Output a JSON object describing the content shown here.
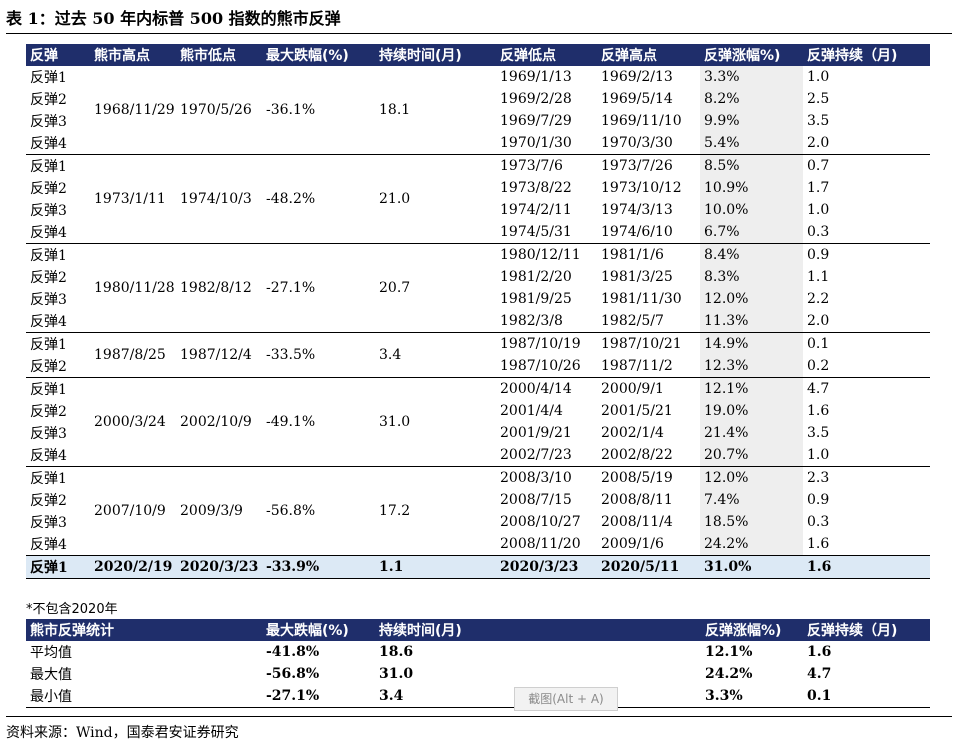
{
  "title": "表 1：过去 50 年内标普 500 指数的熊市反弹",
  "columns": [
    "反弹",
    "熊市高点",
    "熊市低点",
    "最大跌幅(%)",
    "持续时间(月)",
    "反弹低点",
    "反弹高点",
    "反弹涨幅%)",
    "反弹持续（月)"
  ],
  "groups": [
    {
      "high": "1968/11/29",
      "low": "1970/5/26",
      "drop": "-36.1%",
      "dur": "18.1",
      "rebounds": [
        {
          "label": "反弹1",
          "rlow": "1969/1/13",
          "rhigh": "1969/2/13",
          "gain": "3.3%",
          "rdur": "1.0"
        },
        {
          "label": "反弹2",
          "rlow": "1969/2/28",
          "rhigh": "1969/5/14",
          "gain": "8.2%",
          "rdur": "2.5"
        },
        {
          "label": "反弹3",
          "rlow": "1969/7/29",
          "rhigh": "1969/11/10",
          "gain": "9.9%",
          "rdur": "3.5"
        },
        {
          "label": "反弹4",
          "rlow": "1970/1/30",
          "rhigh": "1970/3/30",
          "gain": "5.4%",
          "rdur": "2.0"
        }
      ]
    },
    {
      "high": "1973/1/11",
      "low": "1974/10/3",
      "drop": "-48.2%",
      "dur": "21.0",
      "rebounds": [
        {
          "label": "反弹1",
          "rlow": "1973/7/6",
          "rhigh": "1973/7/26",
          "gain": "8.5%",
          "rdur": "0.7"
        },
        {
          "label": "反弹2",
          "rlow": "1973/8/22",
          "rhigh": "1973/10/12",
          "gain": "10.9%",
          "rdur": "1.7"
        },
        {
          "label": "反弹3",
          "rlow": "1974/2/11",
          "rhigh": "1974/3/13",
          "gain": "10.0%",
          "rdur": "1.0"
        },
        {
          "label": "反弹4",
          "rlow": "1974/5/31",
          "rhigh": "1974/6/10",
          "gain": "6.7%",
          "rdur": "0.3"
        }
      ]
    },
    {
      "high": "1980/11/28",
      "low": "1982/8/12",
      "drop": "-27.1%",
      "dur": "20.7",
      "rebounds": [
        {
          "label": "反弹1",
          "rlow": "1980/12/11",
          "rhigh": "1981/1/6",
          "gain": "8.4%",
          "rdur": "0.9"
        },
        {
          "label": "反弹2",
          "rlow": "1981/2/20",
          "rhigh": "1981/3/25",
          "gain": "8.3%",
          "rdur": "1.1"
        },
        {
          "label": "反弹3",
          "rlow": "1981/9/25",
          "rhigh": "1981/11/30",
          "gain": "12.0%",
          "rdur": "2.2"
        },
        {
          "label": "反弹4",
          "rlow": "1982/3/8",
          "rhigh": "1982/5/7",
          "gain": "11.3%",
          "rdur": "2.0"
        }
      ]
    },
    {
      "high": "1987/8/25",
      "low": "1987/12/4",
      "drop": "-33.5%",
      "dur": "3.4",
      "rebounds": [
        {
          "label": "反弹1",
          "rlow": "1987/10/19",
          "rhigh": "1987/10/21",
          "gain": "14.9%",
          "rdur": "0.1"
        },
        {
          "label": "反弹2",
          "rlow": "1987/10/26",
          "rhigh": "1987/11/2",
          "gain": "12.3%",
          "rdur": "0.2"
        }
      ]
    },
    {
      "high": "2000/3/24",
      "low": "2002/10/9",
      "drop": "-49.1%",
      "dur": "31.0",
      "rebounds": [
        {
          "label": "反弹1",
          "rlow": "2000/4/14",
          "rhigh": "2000/9/1",
          "gain": "12.1%",
          "rdur": "4.7"
        },
        {
          "label": "反弹2",
          "rlow": "2001/4/4",
          "rhigh": "2001/5/21",
          "gain": "19.0%",
          "rdur": "1.6"
        },
        {
          "label": "反弹3",
          "rlow": "2001/9/21",
          "rhigh": "2002/1/4",
          "gain": "21.4%",
          "rdur": "3.5"
        },
        {
          "label": "反弹4",
          "rlow": "2002/7/23",
          "rhigh": "2002/8/22",
          "gain": "20.7%",
          "rdur": "1.0"
        }
      ]
    },
    {
      "high": "2007/10/9",
      "low": "2009/3/9",
      "drop": "-56.8%",
      "dur": "17.2",
      "rebounds": [
        {
          "label": "反弹1",
          "rlow": "2008/3/10",
          "rhigh": "2008/5/19",
          "gain": "12.0%",
          "rdur": "2.3"
        },
        {
          "label": "反弹2",
          "rlow": "2008/7/15",
          "rhigh": "2008/8/11",
          "gain": "7.4%",
          "rdur": "0.9"
        },
        {
          "label": "反弹3",
          "rlow": "2008/10/27",
          "rhigh": "2008/11/4",
          "gain": "18.5%",
          "rdur": "0.3"
        },
        {
          "label": "反弹4",
          "rlow": "2008/11/20",
          "rhigh": "2009/1/6",
          "gain": "24.2%",
          "rdur": "1.6"
        }
      ]
    }
  ],
  "row2020": {
    "label": "反弹1",
    "high": "2020/2/19",
    "low": "2020/3/23",
    "drop": "-33.9%",
    "dur": "1.1",
    "rlow": "2020/3/23",
    "rhigh": "2020/5/11",
    "gain": "31.0%",
    "rdur": "1.6"
  },
  "note": "*不包含2020年",
  "stats": {
    "columns": [
      "熊市反弹统计",
      "最大跌幅(%)",
      "持续时间(月)",
      "反弹涨幅%)",
      "反弹持续（月)"
    ],
    "rows": [
      {
        "label": "平均值",
        "drop": "-41.8%",
        "dur": "18.6",
        "gain": "12.1%",
        "rdur": "1.6"
      },
      {
        "label": "最大值",
        "drop": "-56.8%",
        "dur": "31.0",
        "gain": "24.2%",
        "rdur": "4.7"
      },
      {
        "label": "最小值",
        "drop": "-27.1%",
        "dur": "3.4",
        "gain": "3.3%",
        "rdur": "0.1"
      }
    ]
  },
  "source": "资料来源：Wind，国泰君安证券研究",
  "tooltip": "截图(Alt + A)",
  "colors": {
    "header_bg": "#1f2e6b",
    "highlight_row": "#dce9f5",
    "gain_shade": "#eeeeee"
  }
}
